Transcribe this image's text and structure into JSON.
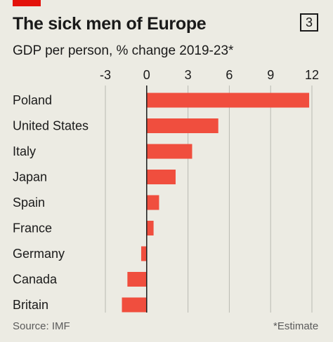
{
  "header": {
    "title": "The sick men of Europe",
    "badge": "3",
    "subtitle": "GDP per person, % change 2019-23*"
  },
  "footer": {
    "source": "Source: IMF",
    "note": "*Estimate"
  },
  "colors": {
    "bar": "#f04e3e",
    "accent": "#e3120b",
    "background": "#ecebe3",
    "grid": "#b9b9b2"
  },
  "chart_data": {
    "type": "bar",
    "orientation": "horizontal",
    "title": "The sick men of Europe",
    "subtitle": "GDP per person, % change 2019-23*",
    "categories": [
      "Poland",
      "United States",
      "Italy",
      "Japan",
      "Spain",
      "France",
      "Germany",
      "Canada",
      "Britain"
    ],
    "values": [
      11.8,
      5.2,
      3.3,
      2.1,
      0.9,
      0.5,
      -0.4,
      -1.4,
      -1.8
    ],
    "xlim": [
      -3,
      12
    ],
    "xticks": [
      -3,
      0,
      3,
      6,
      9,
      12
    ],
    "xtick_labels": [
      "-3",
      "0",
      "3",
      "6",
      "9",
      "12"
    ],
    "grid": true,
    "axis_position": "top"
  }
}
